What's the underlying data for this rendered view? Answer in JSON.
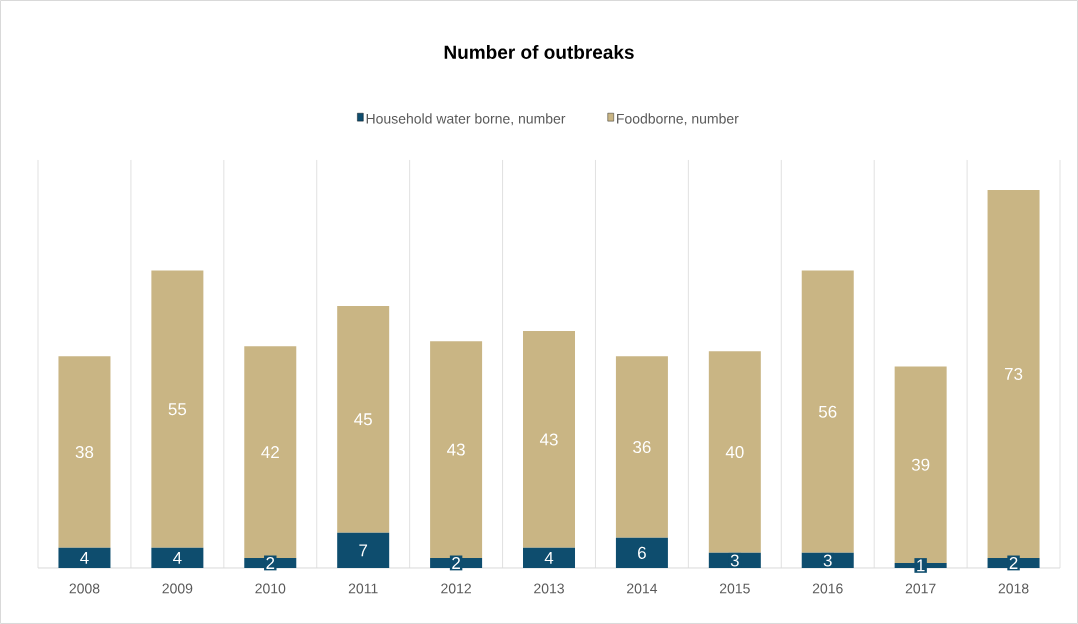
{
  "chart_data": {
    "type": "bar",
    "title": "Number of outbreaks",
    "stacked": true,
    "data_labels": true,
    "grid": "x",
    "legend": "top",
    "categories": [
      "2008",
      "2009",
      "2010",
      "2011",
      "2012",
      "2013",
      "2014",
      "2015",
      "2016",
      "2017",
      "2018"
    ],
    "series": [
      {
        "name": "Household water borne, number",
        "color": "#0e4d6e",
        "values": [
          4,
          4,
          2,
          7,
          2,
          4,
          6,
          3,
          3,
          1,
          2
        ]
      },
      {
        "name": "Foodborne, number",
        "color": "#c9b584",
        "values": [
          38,
          55,
          42,
          45,
          43,
          43,
          36,
          40,
          56,
          39,
          73
        ]
      }
    ]
  }
}
